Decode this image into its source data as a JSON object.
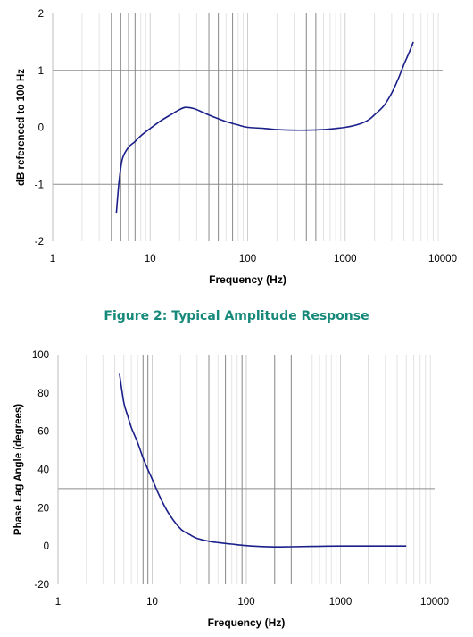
{
  "caption": "Figure 2:  Typical Amplitude Response",
  "colors": {
    "curve": "#1a1f8a",
    "minor_grid": "#e3e3e3",
    "major_grid": "#8c8c8c",
    "caption": "#16897a"
  },
  "chart_data": [
    {
      "type": "line",
      "title": "",
      "xlabel": "Frequency (Hz)",
      "ylabel": "dB referenced to 100 Hz",
      "xscale": "log",
      "xlim": [
        1,
        10000
      ],
      "ylim": [
        -2,
        2
      ],
      "xticks": [
        "1",
        "10",
        "100",
        "1000",
        "10000"
      ],
      "yticks": [
        "2",
        "1",
        "0",
        "-1",
        "-2"
      ],
      "y_tick_values": [
        2,
        1,
        0,
        -1,
        -2
      ],
      "h_gridlines": [
        1,
        -1
      ],
      "v_gridlines": [
        4,
        5,
        6,
        7,
        40,
        50,
        70,
        400,
        500
      ],
      "grid": true,
      "legend": "none",
      "series": [
        {
          "x": [
            4.5,
            4.8,
            5.2,
            6,
            7,
            8,
            10,
            13,
            17,
            20,
            23,
            28,
            35,
            45,
            60,
            80,
            100,
            150,
            200,
            300,
            400,
            600,
            800,
            1000,
            1300,
            1700,
            2000,
            2500,
            3000,
            3500,
            4000,
            4500,
            5000
          ],
          "y": [
            -1.5,
            -0.95,
            -0.55,
            -0.35,
            -0.25,
            -0.15,
            -0.02,
            0.12,
            0.24,
            0.31,
            0.35,
            0.33,
            0.26,
            0.18,
            0.1,
            0.04,
            0.0,
            -0.02,
            -0.04,
            -0.05,
            -0.05,
            -0.04,
            -0.02,
            0.0,
            0.04,
            0.12,
            0.22,
            0.38,
            0.6,
            0.85,
            1.1,
            1.3,
            1.5
          ]
        }
      ]
    },
    {
      "type": "line",
      "title": "",
      "xlabel": "Frequency (Hz)",
      "ylabel": "Phase Lag Angle (degrees)",
      "xscale": "log",
      "xlim": [
        1,
        10000
      ],
      "ylim": [
        -20,
        100
      ],
      "xticks": [
        "1",
        "10",
        "100",
        "1000",
        "10000"
      ],
      "yticks": [
        "100",
        "80",
        "60",
        "40",
        "20",
        "0",
        "-20"
      ],
      "y_tick_values": [
        100,
        80,
        60,
        40,
        20,
        0,
        -20
      ],
      "h_gridlines": [
        30
      ],
      "v_gridlines": [
        8,
        9,
        40,
        60,
        90,
        200,
        300,
        2000
      ],
      "grid": true,
      "legend": "none",
      "series": [
        {
          "x": [
            4.5,
            5,
            5.5,
            6,
            7,
            8,
            9,
            10,
            12,
            15,
            20,
            25,
            30,
            40,
            50,
            70,
            100,
            150,
            200,
            300,
            500,
            1000,
            2000,
            5000
          ],
          "y": [
            90,
            75,
            68,
            62,
            54,
            46,
            40,
            35,
            26,
            17,
            9,
            6,
            4,
            2.5,
            1.8,
            1.0,
            0.2,
            -0.3,
            -0.5,
            -0.4,
            -0.2,
            0,
            0,
            0
          ]
        }
      ]
    }
  ]
}
